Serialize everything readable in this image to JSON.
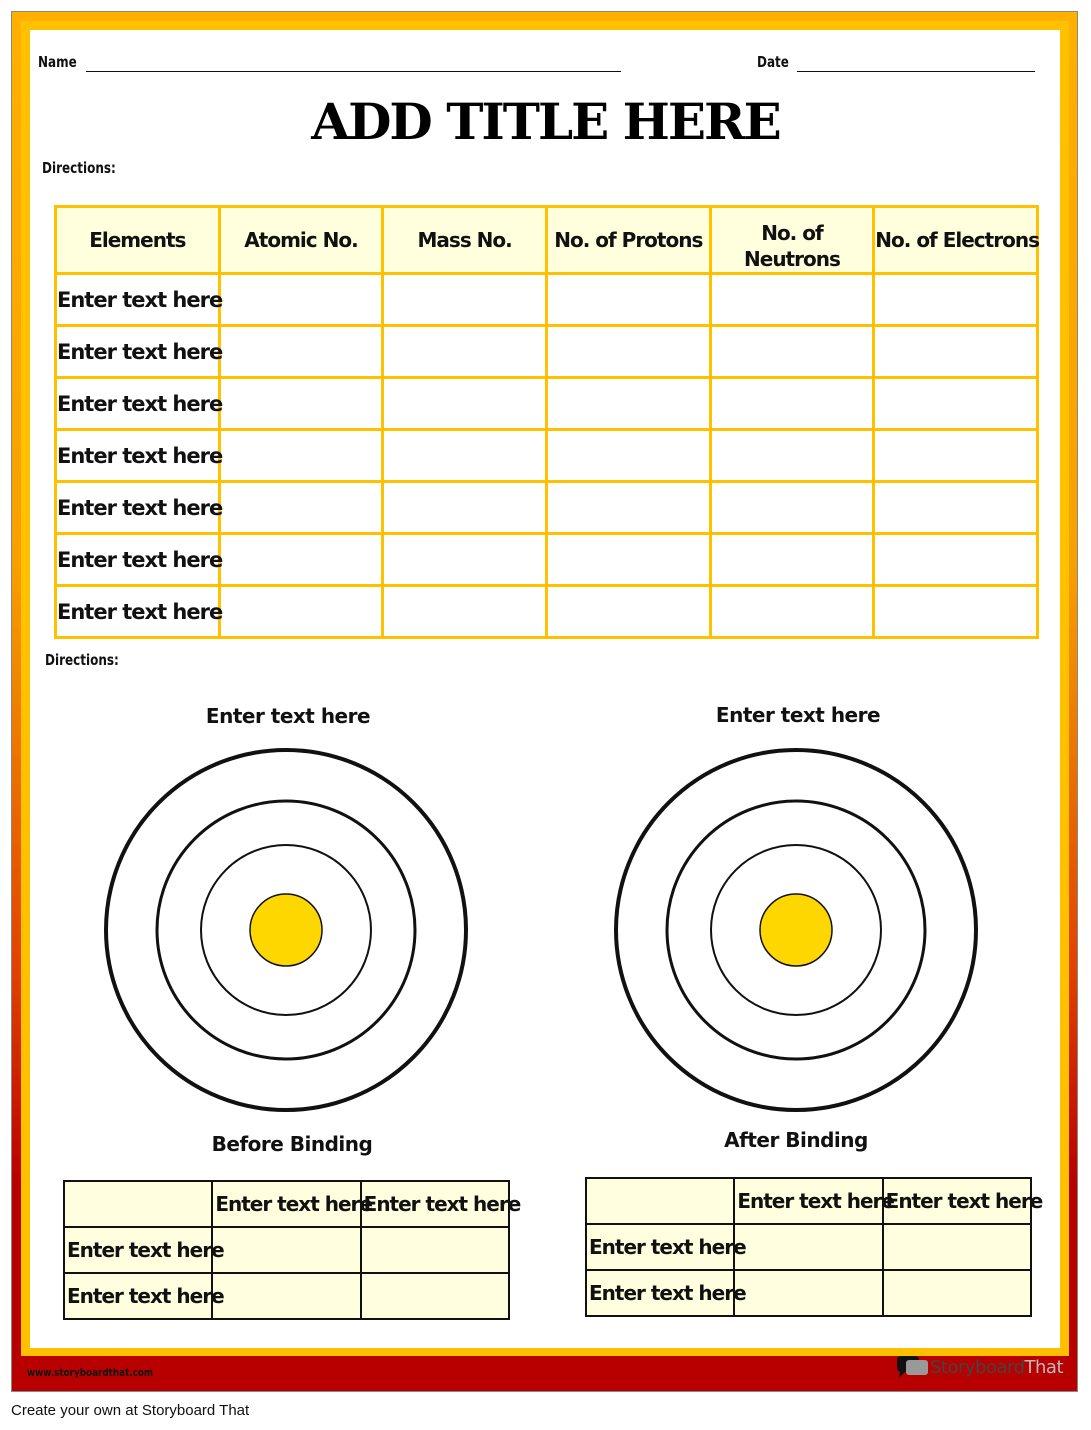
{
  "header": {
    "name_label": "Name",
    "date_label": "Date",
    "title": "ADD TITLE HERE"
  },
  "directions1": "Directions:",
  "directions2": "Directions:",
  "main_table": {
    "headers": [
      "Elements",
      "Atomic No.",
      "Mass No.",
      "No. of Protons",
      "No. of Neutrons",
      "No. of Electrons"
    ],
    "rows": [
      "Enter text here",
      "Enter text here",
      "Enter text here",
      "Enter text here",
      "Enter text here",
      "Enter text here",
      "Enter text here"
    ]
  },
  "atoms": [
    {
      "top_label": "Enter text here",
      "caption": "Before Binding"
    },
    {
      "top_label": "Enter text here",
      "caption": "After Binding"
    }
  ],
  "small_tables": [
    {
      "col_headers": [
        "Enter text here",
        "Enter text here"
      ],
      "row_headers": [
        "Enter text here",
        "Enter text here"
      ]
    },
    {
      "col_headers": [
        "Enter text here",
        "Enter text here"
      ],
      "row_headers": [
        "Enter text here",
        "Enter text here"
      ]
    }
  ],
  "branding": {
    "url": "www.storyboardthat.com",
    "logo_a": "Storyboard",
    "logo_b": "That",
    "footer": "Create your own at Storyboard That"
  },
  "colors": {
    "frame_top": "#FFB000",
    "frame_bottom": "#B80000",
    "table_border": "#FFC000",
    "nucleus": "#FFD700",
    "cell_fill": "#FFFFE0"
  }
}
